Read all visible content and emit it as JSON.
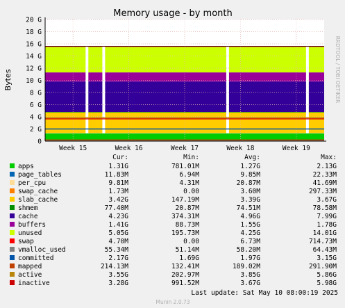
{
  "chart_data": {
    "type": "area",
    "title": "Memory usage - by month",
    "ylabel": "Bytes",
    "watermark": "RRDTOOL / TOBI OETIKER",
    "y_ticks": [
      "0",
      "2 G",
      "4 G",
      "6 G",
      "8 G",
      "10 G",
      "12 G",
      "14 G",
      "16 G",
      "18 G",
      "20 G"
    ],
    "ylim": [
      0,
      20
    ],
    "y_unit": "GiB",
    "x_ticks": [
      "Week 15",
      "Week 16",
      "Week 17",
      "Week 18",
      "Week 19"
    ],
    "x_tick_positions_weeks": [
      0.5,
      1.5,
      2.5,
      3.5,
      4.5
    ],
    "x_range_weeks": [
      0,
      5
    ],
    "grid": true,
    "legend_headers": [
      "Cur:",
      "Min:",
      "Avg:",
      "Max:"
    ],
    "series": [
      {
        "name": "apps",
        "color": "#00cc00",
        "cur": "1.31G",
        "min": "781.01M",
        "avg": "1.27G",
        "max": "2.13G",
        "stacked": true,
        "level_gib": 1.3
      },
      {
        "name": "page_tables",
        "color": "#0066b3",
        "cur": "11.83M",
        "min": "6.94M",
        "avg": "9.85M",
        "max": "22.33M",
        "stacked": true,
        "level_gib": 0.01
      },
      {
        "name": "per_cpu",
        "color": "#ffdd99",
        "cur": "9.81M",
        "min": "4.31M",
        "avg": "20.87M",
        "max": "41.69M",
        "stacked": true,
        "level_gib": 0.02
      },
      {
        "name": "swap_cache",
        "color": "#ff8000",
        "cur": "1.73M",
        "min": "0.00",
        "avg": "3.60M",
        "max": "297.33M",
        "stacked": true,
        "level_gib": 0.0
      },
      {
        "name": "slab_cache",
        "color": "#ffcc00",
        "cur": "3.42G",
        "min": "147.19M",
        "avg": "3.39G",
        "max": "3.67G",
        "stacked": true,
        "level_gib": 3.4
      },
      {
        "name": "shmem",
        "color": "#008f00",
        "cur": "77.40M",
        "min": "20.87M",
        "avg": "74.51M",
        "max": "78.58M",
        "stacked": true,
        "level_gib": 0.07
      },
      {
        "name": "cache",
        "color": "#330099",
        "cur": "4.23G",
        "min": "374.31M",
        "avg": "4.96G",
        "max": "7.99G",
        "stacked": true,
        "level_gib": 5.0
      },
      {
        "name": "buffers",
        "color": "#990099",
        "cur": "1.41G",
        "min": "88.73M",
        "avg": "1.55G",
        "max": "1.78G",
        "stacked": true,
        "level_gib": 1.5
      },
      {
        "name": "unused",
        "color": "#ccff00",
        "cur": "5.05G",
        "min": "195.73M",
        "avg": "4.25G",
        "max": "14.01G",
        "stacked": true,
        "level_gib": 4.2
      },
      {
        "name": "swap",
        "color": "#ff0000",
        "cur": "4.70M",
        "min": "0.00",
        "avg": "6.73M",
        "max": "714.73M",
        "stacked": true,
        "level_gib": 0.01
      },
      {
        "name": "vmalloc_used",
        "color": "#808080",
        "cur": "55.34M",
        "min": "51.14M",
        "avg": "58.20M",
        "max": "64.43M",
        "stacked": false,
        "level_gib": 0.06
      },
      {
        "name": "committed",
        "color": "#0055aa",
        "cur": "2.17G",
        "min": "1.69G",
        "avg": "1.97G",
        "max": "3.15G",
        "stacked": false,
        "level_gib": 2.0
      },
      {
        "name": "mapped",
        "color": "#c04000",
        "cur": "214.13M",
        "min": "132.41M",
        "avg": "189.02M",
        "max": "291.90M",
        "stacked": false,
        "level_gib": 0.19
      },
      {
        "name": "active",
        "color": "#b8860b",
        "cur": "3.55G",
        "min": "202.97M",
        "avg": "3.85G",
        "max": "5.86G",
        "stacked": false,
        "level_gib": 3.85
      },
      {
        "name": "inactive",
        "color": "#cc0000",
        "cur": "3.28G",
        "min": "991.52M",
        "avg": "3.67G",
        "max": "5.98G",
        "stacked": false,
        "level_gib": 3.67
      }
    ],
    "reboot_dips_weeks": [
      0.75,
      1.05,
      3.27,
      4.7
    ],
    "total_line_gib": 15.6
  },
  "footer": {
    "last_update": "Last update: Sat May 10 08:00:19 2025",
    "munin_version": "Munin 2.0.73"
  }
}
